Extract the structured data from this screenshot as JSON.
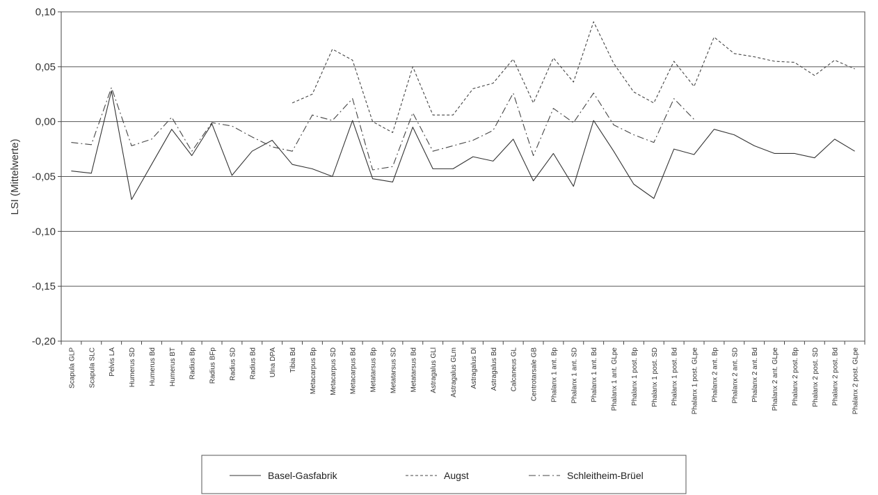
{
  "chart_data": {
    "type": "line",
    "ylabel": "LSI (Mittelwerte)",
    "xlabel": "",
    "ylim": [
      -0.2,
      0.1
    ],
    "yticks": [
      0.1,
      0.05,
      0.0,
      -0.05,
      -0.1,
      -0.15,
      -0.2
    ],
    "ytick_labels": [
      "0,10",
      "0,05",
      "0,00",
      "-0,05",
      "-0,10",
      "-0,15",
      "-0,20"
    ],
    "grid": "horizontal",
    "legend_position": "bottom",
    "categories": [
      "Scapula GLP",
      "Scapula SLC",
      "Pelvis LA",
      "Humerus SD",
      "Humerus Bd",
      "Humerus BT",
      "Radius Bp",
      "Radius BFp",
      "Radius SD",
      "Radius Bd",
      "Ulna DPA",
      "Tibia Bd",
      "Metacarpus Bp",
      "Metacarpus SD",
      "Metacarpus Bd",
      "Metatarsus Bp",
      "Metatarsus SD",
      "Metatarsus Bd",
      "Astragalus GLl",
      "Astragalus GLm",
      "Astragalus Dl",
      "Astragalus Bd",
      "Calcaneus GL",
      "Centrotarsale GB",
      "Phalanx 1 ant. Bp",
      "Phalanx 1 ant. SD",
      "Phalanx 1 ant. Bd",
      "Phalanx 1 ant. GLpe",
      "Phalanx 1 post. Bp",
      "Phalanx 1 post. SD",
      "Phalanx 1 post. Bd",
      "Phalanx 1 post. GLpe",
      "Phalanx 2 ant. Bp",
      "Phalanx 2 ant. SD",
      "Phalanx 2 ant. Bd",
      "Phalanx 2 ant. GLpe",
      "Phalanx 2 post. Bp",
      "Phalanx 2 post. SD",
      "Phalanx 2 post. Bd",
      "Phalanx 2 post. GLpe"
    ],
    "series": [
      {
        "name": "Basel-Gasfabrik",
        "dash": "solid",
        "color": "#333333",
        "values": [
          -0.045,
          -0.047,
          0.028,
          -0.071,
          -0.039,
          -0.007,
          -0.031,
          -0.002,
          -0.049,
          -0.027,
          -0.017,
          -0.039,
          -0.043,
          -0.05,
          0.001,
          -0.052,
          -0.055,
          -0.005,
          -0.043,
          -0.043,
          -0.032,
          -0.036,
          -0.016,
          -0.054,
          -0.029,
          -0.059,
          0.001,
          -0.027,
          -0.057,
          -0.07,
          -0.025,
          -0.03,
          -0.007,
          -0.012,
          -0.022,
          -0.029,
          -0.029,
          -0.033,
          -0.016,
          -0.027
        ]
      },
      {
        "name": "Augst",
        "dash": "dashed",
        "color": "#444444",
        "values": [
          null,
          null,
          null,
          null,
          null,
          null,
          null,
          null,
          null,
          null,
          null,
          0.017,
          0.025,
          0.066,
          0.056,
          0.0,
          -0.01,
          0.05,
          0.006,
          0.006,
          0.03,
          0.035,
          0.057,
          0.017,
          0.058,
          0.036,
          0.091,
          0.053,
          0.027,
          0.017,
          0.055,
          0.032,
          0.077,
          0.062,
          0.059,
          0.055,
          0.054,
          0.042,
          0.056,
          0.048
        ]
      },
      {
        "name": "Schleitheim-Brüel",
        "dash": "dashdot",
        "color": "#444444",
        "values": [
          -0.019,
          -0.021,
          0.031,
          -0.022,
          -0.016,
          0.004,
          -0.027,
          -0.001,
          -0.004,
          -0.014,
          -0.023,
          -0.027,
          0.006,
          0.001,
          0.021,
          -0.044,
          -0.041,
          0.008,
          -0.027,
          -0.022,
          -0.017,
          -0.008,
          0.026,
          -0.031,
          0.012,
          -0.001,
          0.026,
          -0.003,
          -0.012,
          -0.019,
          0.021,
          0.002,
          null,
          null,
          null,
          null,
          null,
          null,
          null,
          null
        ]
      }
    ]
  },
  "legend": {
    "items": [
      {
        "label": "Basel-Gasfabrik"
      },
      {
        "label": "Augst"
      },
      {
        "label": "Schleitheim-Brüel"
      }
    ]
  }
}
